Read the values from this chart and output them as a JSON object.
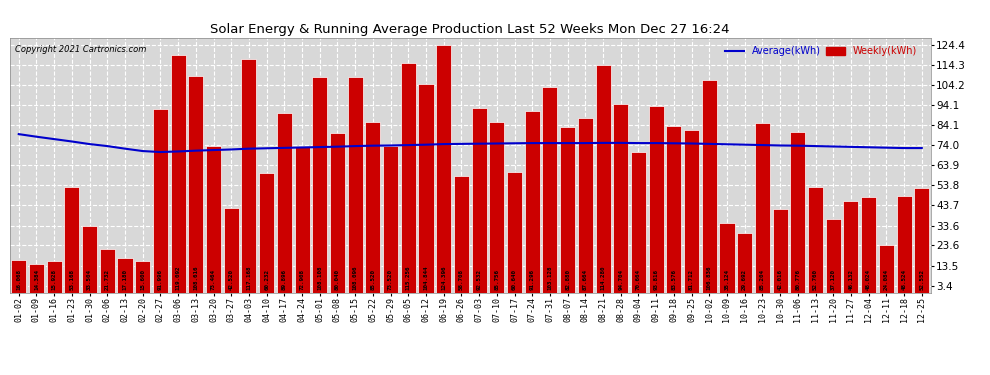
{
  "title": "Solar Energy & Running Average Production Last 52 Weeks Mon Dec 27 16:24",
  "copyright": "Copyright 2021 Cartronics.com",
  "legend_avg": "Average(kWh)",
  "legend_weekly": "Weekly(kWh)",
  "bar_color": "#cc0000",
  "bar_edge_color": "#ffffff",
  "avg_line_color": "#0000cc",
  "background_color": "#ffffff",
  "plot_bg_color": "#d8d8d8",
  "grid_color": "#ffffff",
  "yticks": [
    3.4,
    13.5,
    23.6,
    33.6,
    43.7,
    53.8,
    63.9,
    74.0,
    84.1,
    94.1,
    104.2,
    114.3,
    124.4
  ],
  "ylim": [
    0,
    128
  ],
  "categories": [
    "01-02",
    "01-09",
    "01-16",
    "01-23",
    "01-30",
    "02-06",
    "02-13",
    "02-20",
    "02-27",
    "03-06",
    "03-13",
    "03-20",
    "03-27",
    "04-03",
    "04-10",
    "04-17",
    "04-24",
    "05-01",
    "05-08",
    "05-15",
    "05-22",
    "05-29",
    "06-05",
    "06-12",
    "06-19",
    "06-26",
    "07-03",
    "07-10",
    "07-17",
    "07-24",
    "07-31",
    "08-07",
    "08-14",
    "08-21",
    "08-28",
    "09-04",
    "09-11",
    "09-18",
    "09-25",
    "10-02",
    "10-09",
    "10-16",
    "10-23",
    "10-30",
    "11-06",
    "11-13",
    "11-20",
    "11-27",
    "12-04",
    "12-11",
    "12-18",
    "12-25"
  ],
  "weekly_values": [
    16.068,
    14.384,
    15.928,
    53.168,
    33.504,
    21.732,
    17.18,
    15.6,
    91.996,
    119.092,
    108.616,
    73.464,
    42.52,
    117.168,
    60.232,
    89.896,
    72.908,
    108.108,
    80.04,
    108.096,
    85.52,
    73.52,
    115.256,
    104.844,
    124.396,
    58.708,
    92.532,
    85.756,
    60.64,
    91.296,
    103.128,
    82.88,
    87.664,
    114.28,
    94.704,
    70.664,
    93.816,
    83.576,
    81.712,
    106.836,
    35.124,
    29.692,
    85.204,
    42.016,
    80.776,
    52.76,
    37.12,
    46.132,
    48.024,
    24.084,
    48.524,
    52.552
  ],
  "avg_values": [
    79.5,
    78.2,
    77.0,
    75.8,
    74.5,
    73.5,
    72.2,
    71.0,
    70.5,
    70.8,
    71.2,
    71.5,
    71.8,
    72.2,
    72.4,
    72.6,
    72.8,
    73.0,
    73.2,
    73.5,
    73.7,
    73.8,
    74.0,
    74.2,
    74.5,
    74.6,
    74.7,
    74.8,
    74.9,
    75.0,
    75.0,
    75.0,
    75.0,
    75.1,
    75.1,
    75.0,
    75.0,
    74.9,
    74.8,
    74.6,
    74.4,
    74.2,
    74.0,
    73.8,
    73.7,
    73.5,
    73.3,
    73.1,
    72.9,
    72.7,
    72.5,
    72.5
  ]
}
